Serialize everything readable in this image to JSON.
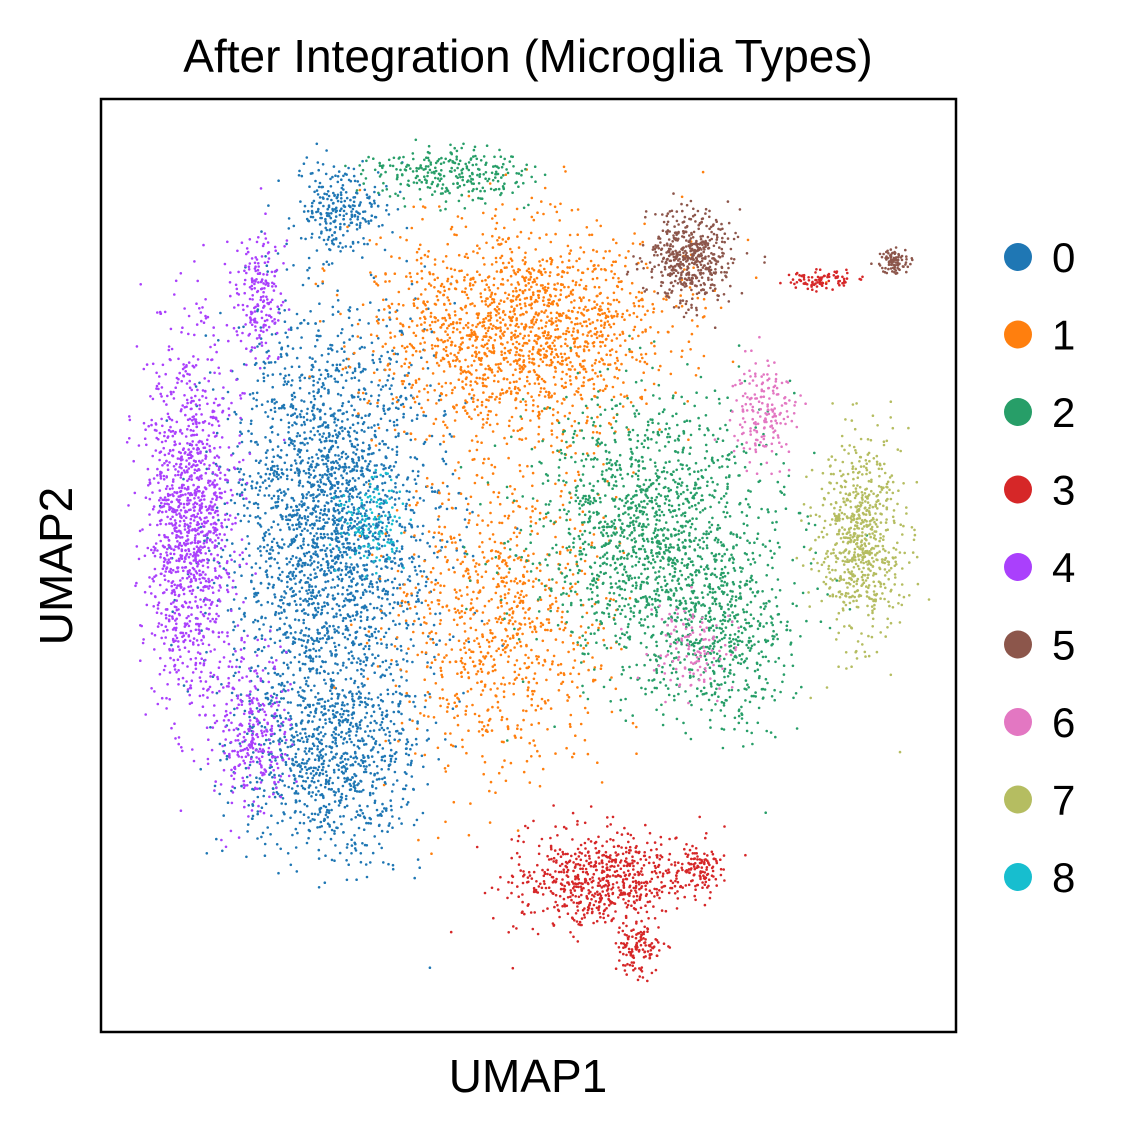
{
  "chart_data": {
    "type": "scatter",
    "title": "After Integration (Microglia Types)",
    "xlabel": "UMAP1",
    "ylabel": "UMAP2",
    "grid": false,
    "ticks": "none",
    "legend_position": "right",
    "series": [
      {
        "name": "0",
        "color": "#1f77b4"
      },
      {
        "name": "1",
        "color": "#ff7f0e"
      },
      {
        "name": "2",
        "color": "#279e68"
      },
      {
        "name": "3",
        "color": "#d62728"
      },
      {
        "name": "4",
        "color": "#aa40fc"
      },
      {
        "name": "5",
        "color": "#8c564b"
      },
      {
        "name": "6",
        "color": "#e377c2"
      },
      {
        "name": "7",
        "color": "#b5bd61"
      },
      {
        "name": "8",
        "color": "#17becf"
      }
    ]
  }
}
